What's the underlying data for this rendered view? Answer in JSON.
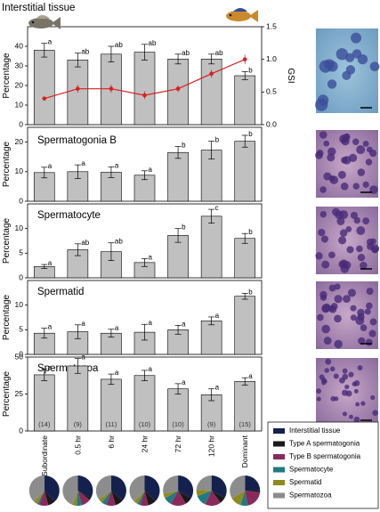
{
  "chart_data": [
    {
      "type": "bar",
      "title": "Interstitial tissue",
      "ylabel": "Percentage",
      "y2label": "GSI",
      "ylim": [
        0,
        50
      ],
      "yticks": [
        0,
        10,
        20,
        30,
        40
      ],
      "y2lim": [
        0,
        1.5
      ],
      "y2ticks": [
        "0.0",
        "0.5",
        "1.0",
        "1.5"
      ],
      "categories": [
        "Subordinate",
        "0.5 hr",
        "6 hr",
        "24 hr",
        "72 hr",
        "120 hr",
        "Dominant"
      ],
      "values": [
        38,
        33,
        36,
        37,
        33.5,
        33.5,
        25
      ],
      "errors": [
        3.5,
        3.5,
        4,
        4,
        2.5,
        2.5,
        2
      ],
      "letters": [
        "a",
        "ab",
        "ab",
        "ab",
        "ab",
        "ab",
        "b"
      ],
      "line_series": {
        "values": [
          0.4,
          0.55,
          0.55,
          0.45,
          0.55,
          0.78,
          1.0
        ],
        "errors": [
          0.03,
          0.06,
          0.06,
          0.06,
          0.05,
          0.06,
          0.07
        ]
      }
    },
    {
      "type": "bar",
      "title": "Spermatogonia B",
      "ylabel": "Percentage",
      "ylim": [
        0,
        25
      ],
      "yticks": [
        0,
        10,
        20
      ],
      "categories": [
        "Subordinate",
        "0.5 hr",
        "6 hr",
        "24 hr",
        "72 hr",
        "120 hr",
        "Dominant"
      ],
      "values": [
        9.7,
        10,
        9.8,
        8.8,
        16.5,
        17.3,
        20.3
      ],
      "errors": [
        1.8,
        2.3,
        1.8,
        1.5,
        2,
        3,
        2
      ],
      "letters": [
        "a",
        "a",
        "a",
        "a",
        "b",
        "b",
        "b"
      ]
    },
    {
      "type": "bar",
      "title": "Spermatocyte",
      "ylabel": "Percentage",
      "ylim": [
        0,
        15
      ],
      "yticks": [
        0,
        5,
        10
      ],
      "categories": [
        "Subordinate",
        "0.5 hr",
        "6 hr",
        "24 hr",
        "72 hr",
        "120 hr",
        "Dominant"
      ],
      "values": [
        2.3,
        5.7,
        5.3,
        3.1,
        8.6,
        12.5,
        8
      ],
      "errors": [
        0.4,
        1.2,
        1.8,
        0.8,
        1.4,
        1.4,
        1
      ],
      "letters": [
        "a",
        "ab",
        "ab",
        "a",
        "b",
        "c",
        "b"
      ]
    },
    {
      "type": "bar",
      "title": "Spermatid",
      "ylabel": "Percentage",
      "ylim": [
        0,
        15
      ],
      "yticks": [
        0,
        5,
        10
      ],
      "categories": [
        "Subordinate",
        "0.5 hr",
        "6 hr",
        "24 hr",
        "72 hr",
        "120 hr",
        "Dominant"
      ],
      "values": [
        4.3,
        4.6,
        4.3,
        4.5,
        5,
        6.8,
        11.8
      ],
      "errors": [
        1,
        1.4,
        0.8,
        1.6,
        0.9,
        0.8,
        0.6
      ],
      "letters": [
        "a",
        "a",
        "a",
        "a",
        "a",
        "a",
        "b"
      ]
    },
    {
      "type": "bar",
      "title": "Spermatozoa",
      "ylabel": "Percentage",
      "ylim": [
        0,
        50
      ],
      "yticks": [
        0,
        25,
        50
      ],
      "categories": [
        "Subordinate",
        "0.5 hr",
        "6 hr",
        "24 hr",
        "72 hr",
        "120 hr",
        "Dominant"
      ],
      "values": [
        38,
        44,
        35,
        37.5,
        28.5,
        24.5,
        33.5
      ],
      "errors": [
        4,
        5,
        3.5,
        3.5,
        3.5,
        4,
        2.5
      ],
      "letters": [
        "a",
        "a",
        "a",
        "a",
        "a",
        "a",
        "a"
      ],
      "sample_sizes": [
        "(14)",
        "(9)",
        "(11)",
        "(10)",
        "(10)",
        "(9)",
        "(15)"
      ]
    },
    {
      "type": "pie",
      "categories": [
        "Subordinate",
        "0.5 hr",
        "6 hr",
        "24 hr",
        "72 hr",
        "120 hr",
        "Dominant"
      ],
      "legend": [
        "Interstitial tissue",
        "Type A spermatogonia",
        "Type B spermatogonia",
        "Spermatocyte",
        "Spermatid",
        "Spermatozoa"
      ],
      "colors": [
        "#14214f",
        "#1a1a1a",
        "#8a2a5a",
        "#1f7a83",
        "#8f8a20",
        "#8c8c8c"
      ],
      "values": [
        [
          38,
          8,
          9.7,
          2.3,
          4.3,
          38
        ],
        [
          33,
          2.5,
          10,
          5.7,
          4.6,
          44
        ],
        [
          36,
          9,
          9.8,
          5.3,
          4.3,
          35
        ],
        [
          37,
          9,
          8.8,
          3.1,
          4.5,
          37.5
        ],
        [
          33.5,
          8,
          16.5,
          8.6,
          5,
          28.5
        ],
        [
          33.5,
          7,
          17.3,
          12.5,
          6.8,
          24.5
        ],
        [
          25,
          2,
          20.3,
          8,
          11.8,
          33.5
        ]
      ]
    }
  ]
}
